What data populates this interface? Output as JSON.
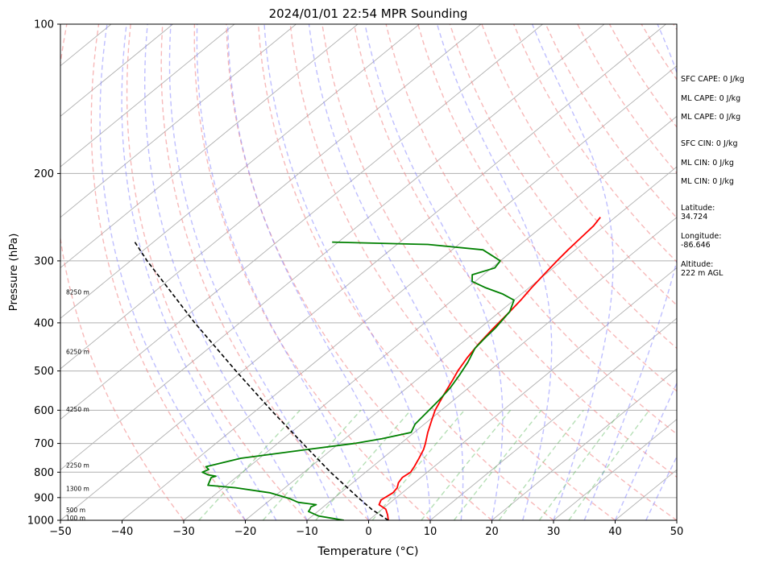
{
  "chart_data": {
    "type": "line",
    "subtype": "skew-T log-P sounding",
    "title": "2024/01/01 22:54 MPR Sounding",
    "xlabel": "Temperature (°C)",
    "ylabel": "Pressure (hPa)",
    "xlim": [
      -50,
      50
    ],
    "ylim": [
      1000,
      100
    ],
    "y_scale": "log",
    "x_ticks": [
      -50,
      -40,
      -30,
      -20,
      -10,
      0,
      10,
      20,
      30,
      40,
      50
    ],
    "x_tick_labels": [
      "−50",
      "−40",
      "−30",
      "−20",
      "−10",
      "0",
      "10",
      "20",
      "30",
      "40",
      "50"
    ],
    "y_ticks": [
      100,
      200,
      300,
      400,
      500,
      600,
      700,
      800,
      900,
      1000
    ],
    "y_tick_labels": [
      "100",
      "200",
      "300",
      "400",
      "500",
      "600",
      "700",
      "800",
      "900",
      "1000"
    ],
    "grid": true,
    "height_labels": [
      {
        "text": "100 m",
        "p": 990
      },
      {
        "text": "500 m",
        "p": 955
      },
      {
        "text": "1300 m",
        "p": 865
      },
      {
        "text": "2250 m",
        "p": 775
      },
      {
        "text": "4250 m",
        "p": 598
      },
      {
        "text": "6250 m",
        "p": 458
      },
      {
        "text": "8250 m",
        "p": 347
      }
    ],
    "series": [
      {
        "role": "temperature",
        "color": "#ff0000",
        "points": [
          [
            1000,
            3.2
          ],
          [
            975,
            2.0
          ],
          [
            950,
            0.6
          ],
          [
            930,
            -1.4
          ],
          [
            910,
            -2.0
          ],
          [
            880,
            -1.5
          ],
          [
            860,
            -1.8
          ],
          [
            840,
            -2.6
          ],
          [
            820,
            -3.0
          ],
          [
            800,
            -2.7
          ],
          [
            780,
            -3.2
          ],
          [
            750,
            -4.1
          ],
          [
            720,
            -5.1
          ],
          [
            700,
            -6.0
          ],
          [
            665,
            -7.8
          ],
          [
            630,
            -9.5
          ],
          [
            600,
            -11.0
          ],
          [
            560,
            -12.6
          ],
          [
            520,
            -14.2
          ],
          [
            500,
            -15.1
          ],
          [
            470,
            -16.2
          ],
          [
            440,
            -17.1
          ],
          [
            410,
            -17.8
          ],
          [
            380,
            -18.4
          ],
          [
            360,
            -18.9
          ],
          [
            340,
            -19.6
          ],
          [
            320,
            -20.2
          ],
          [
            300,
            -20.8
          ],
          [
            285,
            -21.2
          ],
          [
            270,
            -21.5
          ],
          [
            255,
            -21.8
          ],
          [
            245,
            -22.4
          ]
        ]
      },
      {
        "role": "dewpoint",
        "color": "#008000",
        "points": [
          [
            1000,
            -4.0
          ],
          [
            990,
            -6.5
          ],
          [
            980,
            -9.0
          ],
          [
            960,
            -11.5
          ],
          [
            950,
            -11.7
          ],
          [
            940,
            -12.0
          ],
          [
            930,
            -11.6
          ],
          [
            920,
            -15.0
          ],
          [
            905,
            -17.0
          ],
          [
            880,
            -21.5
          ],
          [
            860,
            -28.0
          ],
          [
            850,
            -33.0
          ],
          [
            820,
            -34.0
          ],
          [
            815,
            -33.5
          ],
          [
            810,
            -35.0
          ],
          [
            800,
            -36.5
          ],
          [
            790,
            -36.0
          ],
          [
            780,
            -37.0
          ],
          [
            750,
            -33.0
          ],
          [
            720,
            -24.0
          ],
          [
            700,
            -17.5
          ],
          [
            685,
            -14.0
          ],
          [
            665,
            -10.5
          ],
          [
            640,
            -11.5
          ],
          [
            600,
            -12.0
          ],
          [
            570,
            -12.4
          ],
          [
            540,
            -13.0
          ],
          [
            510,
            -14.0
          ],
          [
            480,
            -15.2
          ],
          [
            450,
            -16.8
          ],
          [
            430,
            -17.2
          ],
          [
            410,
            -17.5
          ],
          [
            380,
            -18.4
          ],
          [
            360,
            -20.0
          ],
          [
            350,
            -23.0
          ],
          [
            340,
            -27.0
          ],
          [
            330,
            -30.5
          ],
          [
            320,
            -31.8
          ],
          [
            310,
            -29.5
          ],
          [
            300,
            -30.0
          ],
          [
            285,
            -35.0
          ],
          [
            278,
            -45.0
          ],
          [
            275,
            -61.0
          ]
        ]
      },
      {
        "role": "parcel profile",
        "color": "#000000",
        "style": "dashed",
        "points": [
          [
            1000,
            3.2
          ],
          [
            950,
            -1.7
          ],
          [
            900,
            -6.2
          ],
          [
            850,
            -10.8
          ],
          [
            800,
            -15.7
          ],
          [
            700,
            -25.9
          ],
          [
            600,
            -37.6
          ],
          [
            500,
            -51.1
          ],
          [
            400,
            -67.3
          ],
          [
            300,
            -87.3
          ],
          [
            275,
            -93.0
          ]
        ]
      }
    ],
    "background_lines": {
      "isotherms": "solid grey, skewed",
      "dry_adiabats": "dashed red",
      "moist_adiabats": "dashed blue",
      "mixing_ratio_lines": "dashed green"
    }
  },
  "side_panel": [
    {
      "text": "SFC CAPE: 0 J/kg"
    },
    {
      "text": "ML CAPE: 0 J/kg"
    },
    {
      "text": "ML CAPE: 0 J/kg"
    },
    {
      "text": "SFC CIN: 0 J/kg"
    },
    {
      "text": "ML CIN: 0 J/kg"
    },
    {
      "text": "ML CIN: 0 J/kg"
    },
    {
      "text": "Latitude:\n34.724"
    },
    {
      "text": "Longitude:\n-86.646"
    },
    {
      "text": "Altitude:\n222 m AGL"
    }
  ]
}
